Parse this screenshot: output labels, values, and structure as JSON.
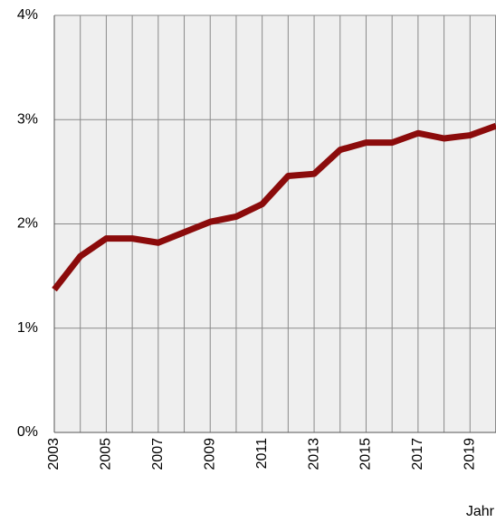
{
  "chart_data": {
    "type": "line",
    "x": [
      2003,
      2004,
      2005,
      2006,
      2007,
      2008,
      2009,
      2010,
      2011,
      2012,
      2013,
      2014,
      2015,
      2016,
      2017,
      2018,
      2019,
      2020
    ],
    "series": [
      {
        "color": "#8b0b0b",
        "values": [
          1.37,
          1.69,
          1.86,
          1.86,
          1.82,
          1.92,
          2.02,
          2.07,
          2.19,
          2.46,
          2.48,
          2.71,
          2.78,
          2.78,
          2.87,
          2.82,
          2.85,
          2.94
        ]
      }
    ],
    "xlim": [
      2003,
      2020
    ],
    "xticks": [
      2003,
      2005,
      2007,
      2009,
      2011,
      2013,
      2015,
      2017,
      2019
    ],
    "xminor": [
      2004,
      2006,
      2008,
      2010,
      2012,
      2014,
      2016,
      2018,
      2020
    ],
    "ylim": [
      0,
      4
    ],
    "yticks": [
      {
        "value": 0,
        "label": "0%"
      },
      {
        "value": 1,
        "label": "1%"
      },
      {
        "value": 2,
        "label": "2%"
      },
      {
        "value": 3,
        "label": "3%"
      },
      {
        "value": 4,
        "label": "4%"
      }
    ],
    "xlabel": "Jahr",
    "grid": true
  }
}
